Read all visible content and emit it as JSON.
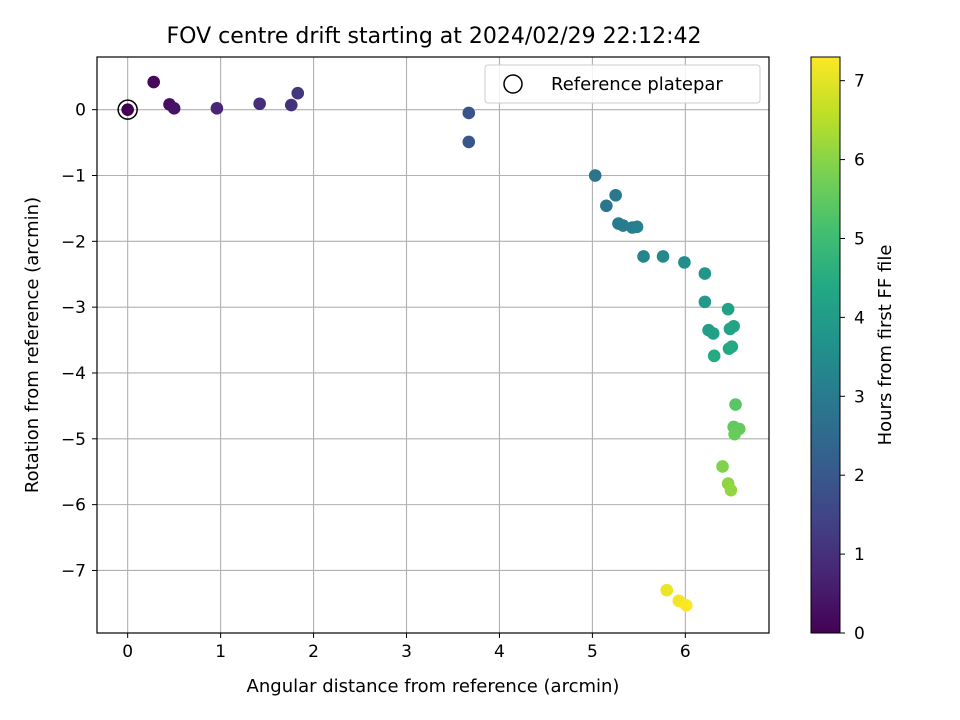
{
  "chart_data": {
    "type": "scatter",
    "title": "FOV centre drift starting at 2024/02/29 22:12:42",
    "xlabel": "Angular distance from reference (arcmin)",
    "ylabel": "Rotation from reference (arcmin)",
    "xlim": [
      -0.33,
      6.9
    ],
    "ylim": [
      -7.95,
      0.8
    ],
    "xticks": [
      0,
      1,
      2,
      3,
      4,
      5,
      6
    ],
    "yticks": [
      0,
      -1,
      -2,
      -3,
      -4,
      -5,
      -6,
      -7
    ],
    "grid": true,
    "legend": {
      "position": "top-right",
      "entries": [
        "Reference platepar"
      ]
    },
    "reference_point": {
      "x": 0,
      "y": 0
    },
    "colorbar": {
      "label": "Hours from first FF file",
      "range": [
        0,
        7.3
      ],
      "ticks": [
        0,
        1,
        2,
        3,
        4,
        5,
        6,
        7
      ],
      "colormap": "viridis"
    },
    "series": [
      {
        "points": [
          {
            "x": 0.0,
            "y": 0.0,
            "c": 0.0
          },
          {
            "x": 0.28,
            "y": 0.42,
            "c": 0.15
          },
          {
            "x": 0.45,
            "y": 0.08,
            "c": 0.3
          },
          {
            "x": 0.5,
            "y": 0.02,
            "c": 0.4
          },
          {
            "x": 0.96,
            "y": 0.02,
            "c": 0.75
          },
          {
            "x": 1.42,
            "y": 0.09,
            "c": 0.95
          },
          {
            "x": 1.76,
            "y": 0.07,
            "c": 1.05
          },
          {
            "x": 1.83,
            "y": 0.25,
            "c": 1.15
          },
          {
            "x": 3.67,
            "y": -0.05,
            "c": 1.9
          },
          {
            "x": 3.67,
            "y": -0.49,
            "c": 1.95
          },
          {
            "x": 5.03,
            "y": -1.0,
            "c": 2.75
          },
          {
            "x": 5.15,
            "y": -1.46,
            "c": 2.85
          },
          {
            "x": 5.25,
            "y": -1.3,
            "c": 2.9
          },
          {
            "x": 5.28,
            "y": -1.73,
            "c": 3.0
          },
          {
            "x": 5.33,
            "y": -1.76,
            "c": 3.05
          },
          {
            "x": 5.43,
            "y": -1.79,
            "c": 3.1
          },
          {
            "x": 5.48,
            "y": -1.78,
            "c": 3.15
          },
          {
            "x": 5.55,
            "y": -2.23,
            "c": 3.3
          },
          {
            "x": 5.76,
            "y": -2.23,
            "c": 3.4
          },
          {
            "x": 5.99,
            "y": -2.32,
            "c": 3.6
          },
          {
            "x": 6.21,
            "y": -2.49,
            "c": 3.85
          },
          {
            "x": 6.21,
            "y": -2.92,
            "c": 3.95
          },
          {
            "x": 6.25,
            "y": -3.35,
            "c": 4.05
          },
          {
            "x": 6.3,
            "y": -3.4,
            "c": 4.1
          },
          {
            "x": 6.46,
            "y": -3.03,
            "c": 4.15
          },
          {
            "x": 6.48,
            "y": -3.33,
            "c": 4.2
          },
          {
            "x": 6.52,
            "y": -3.29,
            "c": 4.25
          },
          {
            "x": 6.47,
            "y": -3.63,
            "c": 4.35
          },
          {
            "x": 6.5,
            "y": -3.6,
            "c": 4.4
          },
          {
            "x": 6.31,
            "y": -3.74,
            "c": 4.45
          },
          {
            "x": 6.54,
            "y": -4.48,
            "c": 5.4
          },
          {
            "x": 6.52,
            "y": -4.82,
            "c": 5.5
          },
          {
            "x": 6.58,
            "y": -4.85,
            "c": 5.55
          },
          {
            "x": 6.53,
            "y": -4.93,
            "c": 5.6
          },
          {
            "x": 6.4,
            "y": -5.42,
            "c": 5.9
          },
          {
            "x": 6.46,
            "y": -5.68,
            "c": 6.05
          },
          {
            "x": 6.49,
            "y": -5.78,
            "c": 6.1
          },
          {
            "x": 5.8,
            "y": -7.3,
            "c": 7.1
          },
          {
            "x": 5.93,
            "y": -7.46,
            "c": 7.2
          },
          {
            "x": 6.01,
            "y": -7.53,
            "c": 7.3
          }
        ]
      }
    ]
  }
}
